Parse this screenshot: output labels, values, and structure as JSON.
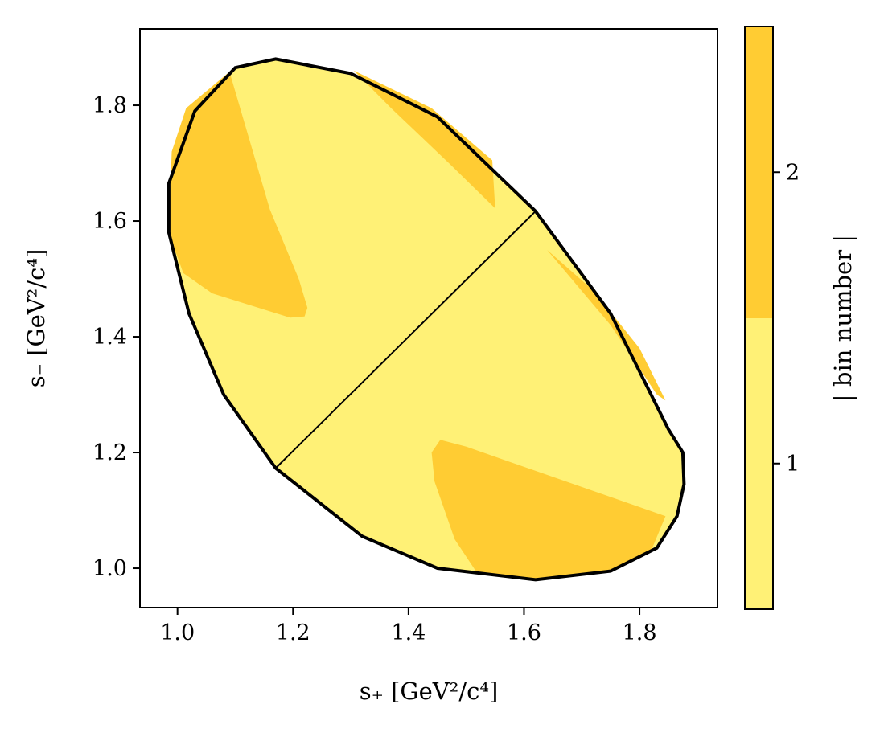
{
  "chart_data": {
    "type": "heatmap",
    "description_source": "Dalitz plot phase-space binning",
    "xlabel": "s₊ [GeV²/c⁴]",
    "ylabel": "s₋ [GeV²/c⁴]",
    "xlim": [
      0.935,
      1.935
    ],
    "ylim": [
      0.932,
      1.932
    ],
    "x_ticks": [
      1.0,
      1.2,
      1.4,
      1.6,
      1.8
    ],
    "y_ticks": [
      1.0,
      1.2,
      1.4,
      1.6,
      1.8
    ],
    "x_tick_labels": [
      "1.0",
      "1.2",
      "1.4",
      "1.6",
      "1.8"
    ],
    "y_tick_labels": [
      "1.0",
      "1.2",
      "1.4",
      "1.6",
      "1.8"
    ],
    "colorbar": {
      "label": "| bin number |",
      "ticks": [
        1,
        2
      ],
      "tick_labels": [
        "1",
        "2"
      ],
      "range": [
        0.5,
        2.5
      ],
      "colors": {
        "1": "#fff176",
        "2": "#ffcc33"
      }
    },
    "boundary": {
      "color": "#000000",
      "points": [
        [
          0.985,
          1.665
        ],
        [
          1.03,
          1.79
        ],
        [
          1.1,
          1.865
        ],
        [
          1.17,
          1.88
        ],
        [
          1.3,
          1.855
        ],
        [
          1.45,
          1.78
        ],
        [
          1.62,
          1.617
        ],
        [
          1.75,
          1.44
        ],
        [
          1.85,
          1.24
        ],
        [
          1.875,
          1.2
        ],
        [
          1.877,
          1.145
        ],
        [
          1.865,
          1.09
        ],
        [
          1.83,
          1.035
        ],
        [
          1.75,
          0.995
        ],
        [
          1.62,
          0.98
        ],
        [
          1.45,
          1.0
        ],
        [
          1.32,
          1.055
        ],
        [
          1.17,
          1.173
        ],
        [
          1.08,
          1.3
        ],
        [
          1.02,
          1.44
        ],
        [
          0.985,
          1.58
        ]
      ]
    },
    "diagonal_line": [
      [
        1.17,
        1.173
      ],
      [
        1.62,
        1.617
      ]
    ],
    "regions": [
      {
        "bin": 2,
        "points": [
          [
            0.99,
            1.72
          ],
          [
            1.015,
            1.795
          ],
          [
            1.09,
            1.858
          ],
          [
            1.16,
            1.62
          ],
          [
            1.21,
            1.5
          ],
          [
            1.225,
            1.45
          ],
          [
            1.22,
            1.435
          ],
          [
            1.195,
            1.433
          ],
          [
            1.06,
            1.475
          ],
          [
            1.01,
            1.51
          ],
          [
            0.985,
            1.58
          ]
        ]
      },
      {
        "bin": 2,
        "points": [
          [
            1.44,
            1.2
          ],
          [
            1.455,
            1.222
          ],
          [
            1.5,
            1.21
          ],
          [
            1.845,
            1.09
          ],
          [
            1.82,
            1.03
          ],
          [
            1.75,
            0.995
          ],
          [
            1.62,
            0.98
          ],
          [
            1.52,
            0.99
          ],
          [
            1.48,
            1.05
          ],
          [
            1.445,
            1.15
          ]
        ]
      },
      {
        "bin": 2,
        "points": [
          [
            1.305,
            1.86
          ],
          [
            1.44,
            1.795
          ],
          [
            1.545,
            1.705
          ],
          [
            1.55,
            1.622
          ],
          [
            1.47,
            1.7
          ],
          [
            1.37,
            1.795
          ]
        ]
      },
      {
        "bin": 2,
        "points": [
          [
            1.64,
            1.55
          ],
          [
            1.72,
            1.48
          ],
          [
            1.8,
            1.38
          ],
          [
            1.845,
            1.29
          ],
          [
            1.83,
            1.3
          ],
          [
            1.75,
            1.42
          ]
        ]
      }
    ]
  }
}
